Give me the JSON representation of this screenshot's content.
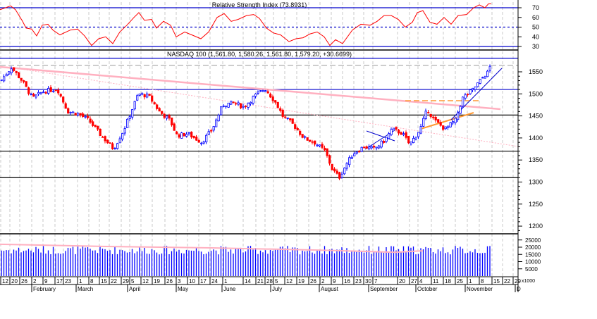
{
  "chart_data": {
    "type": "candlestick",
    "rsi_panel": {
      "title": "Relative Strength Index (73.8931)",
      "ylim": [
        25,
        78
      ],
      "ticks": [
        "70",
        "60",
        "50",
        "40",
        "30"
      ],
      "levels": [
        30,
        50,
        70
      ],
      "points": [
        [
          0,
          68
        ],
        [
          8,
          70
        ],
        [
          15,
          72
        ],
        [
          22,
          68
        ],
        [
          27,
          62
        ],
        [
          32,
          56
        ],
        [
          37,
          49
        ],
        [
          45,
          48
        ],
        [
          52,
          41
        ],
        [
          60,
          52
        ],
        [
          68,
          53
        ],
        [
          75,
          47
        ],
        [
          85,
          42
        ],
        [
          100,
          47
        ],
        [
          110,
          48
        ],
        [
          120,
          41
        ],
        [
          130,
          31
        ],
        [
          140,
          38
        ],
        [
          150,
          40
        ],
        [
          160,
          33
        ],
        [
          170,
          45
        ],
        [
          180,
          52
        ],
        [
          190,
          60
        ],
        [
          197,
          65
        ],
        [
          205,
          57
        ],
        [
          215,
          58
        ],
        [
          222,
          49
        ],
        [
          232,
          56
        ],
        [
          242,
          52
        ],
        [
          250,
          40
        ],
        [
          262,
          45
        ],
        [
          272,
          42
        ],
        [
          285,
          38
        ],
        [
          296,
          45
        ],
        [
          308,
          60
        ],
        [
          318,
          64
        ],
        [
          328,
          56
        ],
        [
          338,
          58
        ],
        [
          350,
          62
        ],
        [
          360,
          63
        ],
        [
          368,
          59
        ],
        [
          378,
          49
        ],
        [
          388,
          44
        ],
        [
          398,
          42
        ],
        [
          410,
          35
        ],
        [
          420,
          38
        ],
        [
          430,
          39
        ],
        [
          440,
          43
        ],
        [
          450,
          45
        ],
        [
          460,
          40
        ],
        [
          468,
          31
        ],
        [
          476,
          37
        ],
        [
          486,
          33
        ],
        [
          500,
          47
        ],
        [
          512,
          53
        ],
        [
          525,
          52
        ],
        [
          535,
          56
        ],
        [
          545,
          62
        ],
        [
          555,
          62
        ],
        [
          565,
          58
        ],
        [
          575,
          50
        ],
        [
          585,
          55
        ],
        [
          592,
          65
        ],
        [
          600,
          67
        ],
        [
          610,
          55
        ],
        [
          620,
          53
        ],
        [
          630,
          60
        ],
        [
          640,
          53
        ],
        [
          650,
          62
        ],
        [
          662,
          63
        ],
        [
          672,
          70
        ],
        [
          680,
          73
        ],
        [
          688,
          70
        ],
        [
          693,
          74
        ],
        [
          697,
          74
        ]
      ]
    },
    "price_panel": {
      "title": "NASDAQ 100 (1,561.80, 1,580.26, 1,561.80, 1,579.20, +30.6699)",
      "yticks": [
        "1550",
        "1500",
        "1450",
        "1400",
        "1350",
        "1300",
        "1250",
        "1200"
      ],
      "ytick_values": [
        1550,
        1500,
        1450,
        1400,
        1350,
        1300,
        1250,
        1200
      ],
      "support_resistance": [
        1581,
        1510,
        1452,
        1370,
        1310
      ],
      "dashed_level": 1565,
      "last": {
        "open": 1561.8,
        "high": 1580.26,
        "low": 1561.8,
        "close": 1579.2,
        "change": 30.6699
      },
      "close_path": [
        [
          0,
          1530
        ],
        [
          15,
          1560
        ],
        [
          30,
          1530
        ],
        [
          45,
          1490
        ],
        [
          60,
          1505
        ],
        [
          80,
          1512
        ],
        [
          95,
          1460
        ],
        [
          110,
          1455
        ],
        [
          125,
          1440
        ],
        [
          140,
          1410
        ],
        [
          160,
          1375
        ],
        [
          175,
          1420
        ],
        [
          185,
          1460
        ],
        [
          195,
          1500
        ],
        [
          210,
          1495
        ],
        [
          225,
          1460
        ],
        [
          240,
          1440
        ],
        [
          250,
          1405
        ],
        [
          265,
          1410
        ],
        [
          285,
          1390
        ],
        [
          300,
          1420
        ],
        [
          315,
          1475
        ],
        [
          330,
          1480
        ],
        [
          345,
          1470
        ],
        [
          360,
          1495
        ],
        [
          375,
          1512
        ],
        [
          390,
          1480
        ],
        [
          400,
          1450
        ],
        [
          415,
          1430
        ],
        [
          430,
          1400
        ],
        [
          445,
          1390
        ],
        [
          460,
          1370
        ],
        [
          470,
          1330
        ],
        [
          480,
          1310
        ],
        [
          490,
          1340
        ],
        [
          500,
          1365
        ],
        [
          515,
          1380
        ],
        [
          530,
          1375
        ],
        [
          545,
          1395
        ],
        [
          555,
          1420
        ],
        [
          570,
          1410
        ],
        [
          580,
          1385
        ],
        [
          595,
          1420
        ],
        [
          605,
          1465
        ],
        [
          615,
          1440
        ],
        [
          630,
          1420
        ],
        [
          645,
          1440
        ],
        [
          655,
          1490
        ],
        [
          670,
          1510
        ],
        [
          685,
          1540
        ],
        [
          692,
          1550
        ],
        [
          697,
          1579
        ]
      ]
    },
    "volume_panel": {
      "yticks": [
        "25000",
        "20000",
        "15000",
        "10000",
        "5000"
      ],
      "ytick_values": [
        25000,
        20000,
        15000,
        10000,
        5000
      ],
      "unit_label": "x1000",
      "typical_range": [
        15000,
        22000
      ]
    },
    "x_axis": {
      "days": [
        "12",
        "20",
        "26",
        "2",
        "9",
        "17",
        "23",
        "1",
        "8",
        "15",
        "22",
        "29",
        "5",
        "12",
        "19",
        "26",
        "3",
        "10",
        "17",
        "24",
        "1",
        "14",
        "21",
        "28",
        "5",
        "12",
        "19",
        "26",
        "2",
        "9",
        "16",
        "23",
        "30",
        "7",
        "20",
        "27",
        "4",
        "11",
        "18",
        "25",
        "1",
        "8",
        "15",
        "22",
        "29"
      ],
      "months": [
        "February",
        "March",
        "April",
        "May",
        "June",
        "July",
        "August",
        "September",
        "October",
        "November",
        "D"
      ]
    },
    "colors": {
      "up": "#0000ff",
      "down": "#ff0000",
      "rsi": "#ff0000",
      "level": "#0000cc",
      "trend_pink": "#ffb0c0",
      "trend_orange": "#ff9933"
    }
  }
}
